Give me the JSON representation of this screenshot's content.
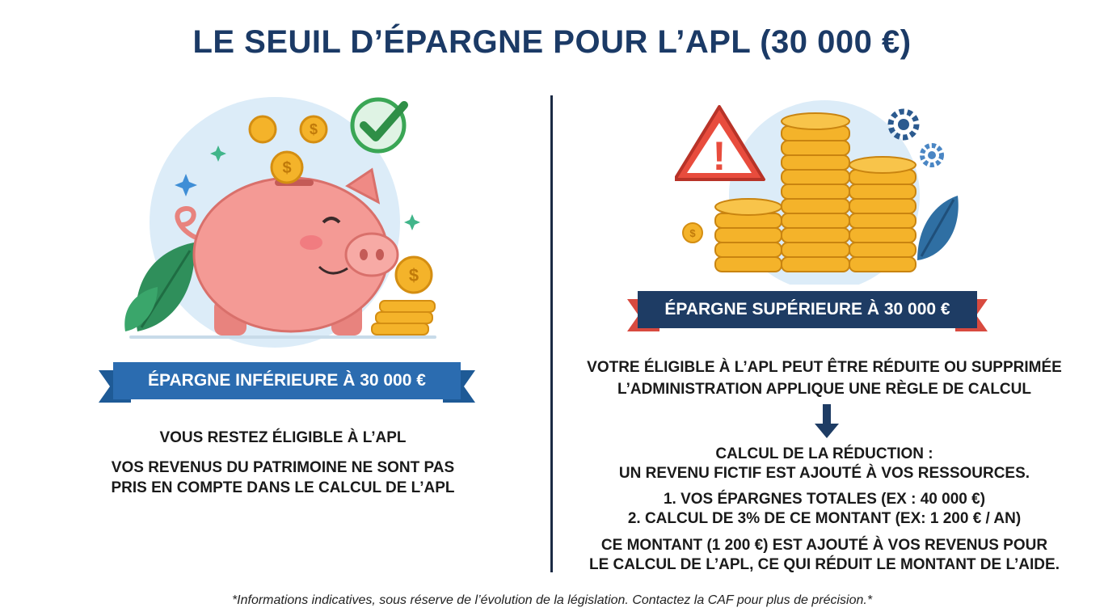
{
  "title": "LE SEUIL D’ÉPARGNE POUR L’APL (30 000 €)",
  "left": {
    "ribbon": "ÉPARGNE INFÉRIEURE À 30 000 €",
    "line1": "VOUS RESTEZ ÉLIGIBLE À L’APL",
    "line2a": "VOS REVENUS DU PATRIMOINE NE SONT PAS",
    "line2b": "PRIS EN COMPTE DANS LE CALCUL DE L’APL",
    "coin_symbol": "$",
    "colors": {
      "ribbon": "#2b6cb0",
      "ribbon_tail": "#e2574c",
      "pig": "#f49a95",
      "check": "#3aa655"
    }
  },
  "right": {
    "ribbon": "ÉPARGNE SUPÉRIEURE À 30 000 €",
    "line1": "VOTRE ÉLIGIBLE À L’APL PEUT ÊTRE RÉDUITE OU SUPPRIMÉE",
    "line2": "L’ADMINISTRATION APPLIQUE UNE RÈGLE DE CALCUL",
    "calc_title": "CALCUL DE LA RÉDUCTION :",
    "calc_sub": "UN REVENU FICTIF EST AJOUTÉ À VOS RESSOURCES.",
    "step1": "1. VOS ÉPARGNES TOTALES (EX : 40 000 €)",
    "step2": "2. CALCUL DE 3% DE CE MONTANT (EX: 1 200 € / AN)",
    "result1": "CE MONTANT (1 200 €) EST AJOUTÉ À VOS REVENUS POUR",
    "result2": "LE CALCUL DE L’APL, CE QUI RÉDUIT LE MONTANT DE L’AIDE.",
    "warning_symbol": "!",
    "coin_symbol": "$",
    "colors": {
      "ribbon": "#1e3c64",
      "ribbon_tail": "#e2574c",
      "warning": "#e84c3d",
      "coins": "#f4b32a"
    }
  },
  "footnote": "*Informations indicatives, sous réserve de l’évolution de la législation. Contactez la CAF pour plus de précision.*"
}
